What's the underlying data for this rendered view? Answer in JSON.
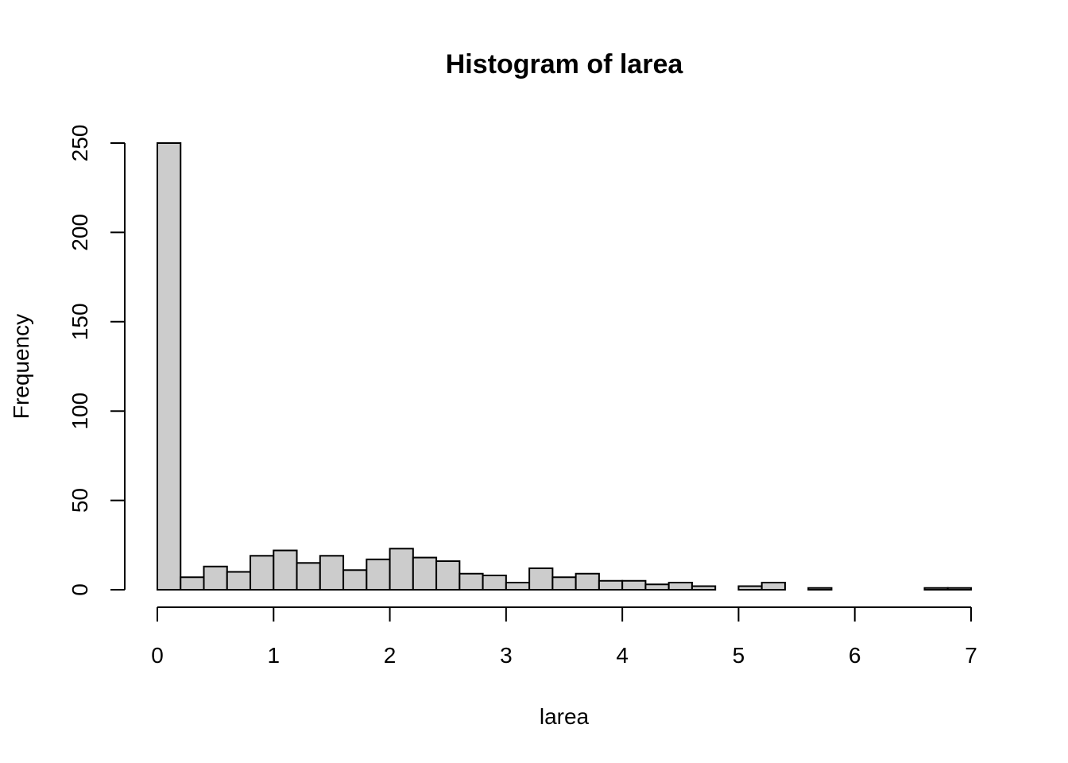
{
  "chart_data": {
    "type": "bar",
    "title": "Histogram of larea",
    "xlabel": "larea",
    "ylabel": "Frequency",
    "bin_width": 0.2,
    "bin_start": 0,
    "xlim": [
      0,
      7
    ],
    "ylim": [
      0,
      250
    ],
    "x_ticks": [
      0,
      1,
      2,
      3,
      4,
      5,
      6,
      7
    ],
    "x_tick_labels": [
      "0",
      "1",
      "2",
      "3",
      "4",
      "5",
      "6",
      "7"
    ],
    "y_ticks": [
      0,
      50,
      100,
      150,
      200,
      250
    ],
    "y_tick_labels": [
      "0",
      "50",
      "100",
      "150",
      "200",
      "250"
    ],
    "values": [
      250,
      7,
      13,
      10,
      19,
      22,
      15,
      19,
      11,
      17,
      23,
      18,
      16,
      9,
      8,
      4,
      12,
      7,
      9,
      5,
      5,
      3,
      4,
      2,
      0,
      2,
      4,
      0,
      1,
      0,
      0,
      0,
      0,
      1,
      1
    ],
    "bar_fill": "#cccccc",
    "bar_stroke": "#000000",
    "grid": false,
    "legend": "none"
  }
}
